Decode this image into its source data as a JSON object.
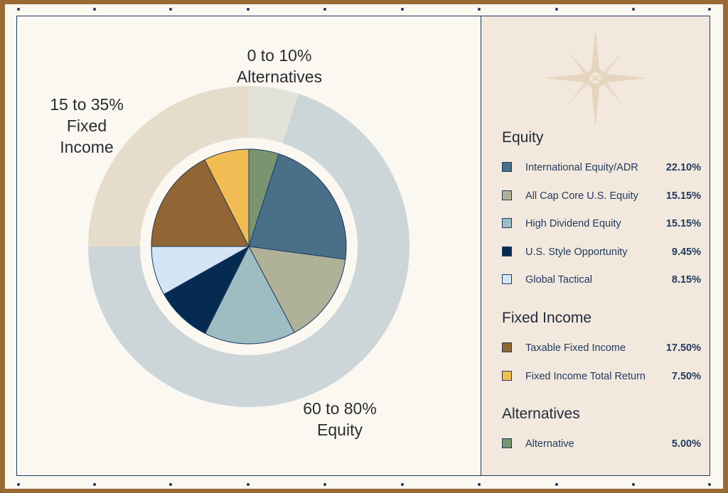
{
  "chart_data": {
    "type": "pie",
    "title": "",
    "outer_ring": [
      {
        "name": "Alternatives",
        "label": "0 to 10%\nAlternatives",
        "value": 5.0,
        "color": "#e2e2d8"
      },
      {
        "name": "Equity",
        "label": "60 to 80%\nEquity",
        "value": 70.0,
        "color": "#ccd5d8"
      },
      {
        "name": "Fixed Income",
        "label": "15 to 35%\nFixed\nIncome",
        "value": 25.0,
        "color": "#e6dccb"
      }
    ],
    "groups": [
      {
        "title": "Equity",
        "items": [
          {
            "label": "International Equity/ADR",
            "value": 22.1,
            "display": "22.10%",
            "color": "#4a7089"
          },
          {
            "label": "All Cap Core U.S. Equity",
            "value": 15.15,
            "display": "15.15%",
            "color": "#b0b199"
          },
          {
            "label": "High Dividend Equity",
            "value": 15.15,
            "display": "15.15%",
            "color": "#9dbdc3"
          },
          {
            "label": "U.S. Style Opportunity",
            "value": 9.45,
            "display": "9.45%",
            "color": "#062b53"
          },
          {
            "label": "Global Tactical",
            "value": 8.15,
            "display": "8.15%",
            "color": "#d4e5f6"
          }
        ]
      },
      {
        "title": "Fixed Income",
        "items": [
          {
            "label": "Taxable Fixed Income",
            "value": 17.5,
            "display": "17.50%",
            "color": "#926634"
          },
          {
            "label": "Fixed Income Total Return",
            "value": 7.5,
            "display": "7.50%",
            "color": "#f2bc55"
          }
        ]
      },
      {
        "title": "Alternatives",
        "items": [
          {
            "label": "Alternative",
            "value": 5.0,
            "display": "5.00%",
            "color": "#7a9470"
          }
        ]
      }
    ],
    "pie_order": [
      "Alternative",
      "International Equity/ADR",
      "All Cap Core U.S. Equity",
      "High Dividend Equity",
      "U.S. Style Opportunity",
      "Global Tactical",
      "Taxable Fixed Income",
      "Fixed Income Total Return"
    ]
  },
  "colors": {
    "frame": "#1f3a5f",
    "slice_stroke": "#1f3a5f",
    "compass": "#e6d5be"
  },
  "icons": {
    "compass": "compass-rose-icon"
  }
}
